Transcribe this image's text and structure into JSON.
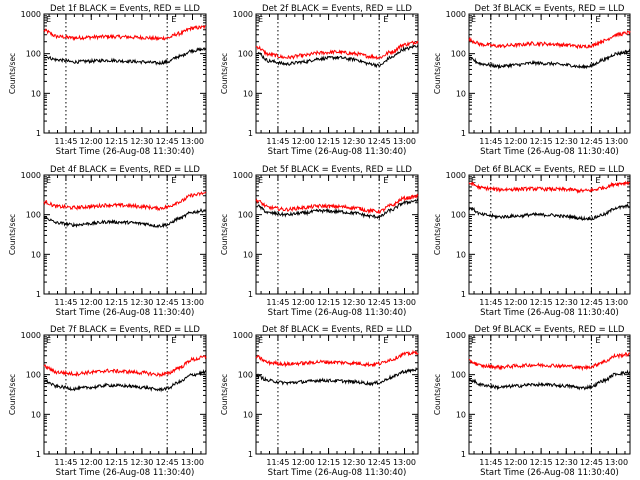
{
  "chart_data": [
    {
      "type": "line",
      "title": "Det 1f BLACK = Events, RED = LLD",
      "xlabel": "Start Time (26-Aug-08 11:30:40)",
      "ylabel": "Counts/sec",
      "y_scale": "log",
      "ylim": [
        1,
        1000
      ],
      "xlim": [
        "11:32",
        "13:08"
      ],
      "xticks": [
        "11:45",
        "12:00",
        "12:15",
        "12:30",
        "12:45",
        "13:00"
      ],
      "yticks": [
        "1",
        "10",
        "100",
        "1000"
      ],
      "event_marks": [
        "11:45",
        "12:45"
      ],
      "event_labels": [
        "E",
        "E"
      ],
      "x": [
        "11:32",
        "11:40",
        "11:50",
        "12:00",
        "12:10",
        "12:20",
        "12:30",
        "12:40",
        "12:45",
        "12:52",
        "13:00",
        "13:08"
      ],
      "series": [
        {
          "color": "#ff0000",
          "values": [
            380,
            270,
            250,
            260,
            270,
            265,
            255,
            240,
            250,
            320,
            440,
            470
          ]
        },
        {
          "color": "#000000",
          "values": [
            85,
            70,
            62,
            65,
            68,
            65,
            62,
            58,
            62,
            85,
            120,
            130
          ]
        }
      ]
    },
    {
      "type": "line",
      "title": "Det 2f BLACK = Events, RED = LLD",
      "xlabel": "Start Time (26-Aug-08 11:30:40)",
      "ylabel": "Counts/sec",
      "y_scale": "log",
      "ylim": [
        1,
        1000
      ],
      "xlim": [
        "11:32",
        "13:08"
      ],
      "xticks": [
        "11:45",
        "12:00",
        "12:15",
        "12:30",
        "12:45",
        "13:00"
      ],
      "yticks": [
        "1",
        "10",
        "100",
        "1000"
      ],
      "event_marks": [
        "11:45",
        "12:45"
      ],
      "event_labels": [
        "E",
        "E"
      ],
      "x": [
        "11:32",
        "11:40",
        "11:50",
        "12:00",
        "12:10",
        "12:20",
        "12:30",
        "12:40",
        "12:45",
        "12:52",
        "13:00",
        "13:08"
      ],
      "series": [
        {
          "color": "#ff0000",
          "values": [
            150,
            95,
            80,
            90,
            105,
            110,
            100,
            85,
            80,
            110,
            170,
            200
          ]
        },
        {
          "color": "#000000",
          "values": [
            110,
            65,
            55,
            62,
            75,
            80,
            72,
            55,
            50,
            80,
            130,
            160
          ]
        }
      ]
    },
    {
      "type": "line",
      "title": "Det 3f BLACK = Events, RED = LLD",
      "xlabel": "Start Time (26-Aug-08 11:30:40)",
      "ylabel": "Counts/sec",
      "y_scale": "log",
      "ylim": [
        1,
        1000
      ],
      "xlim": [
        "11:32",
        "13:08"
      ],
      "xticks": [
        "11:45",
        "12:00",
        "12:15",
        "12:30",
        "12:45",
        "13:00"
      ],
      "yticks": [
        "1",
        "10",
        "100",
        "1000"
      ],
      "event_marks": [
        "11:45",
        "12:45"
      ],
      "event_labels": [
        "E",
        "E"
      ],
      "x": [
        "11:32",
        "11:40",
        "11:50",
        "12:00",
        "12:10",
        "12:20",
        "12:30",
        "12:40",
        "12:45",
        "12:52",
        "13:00",
        "13:08"
      ],
      "series": [
        {
          "color": "#ff0000",
          "values": [
            220,
            170,
            155,
            165,
            180,
            175,
            165,
            150,
            160,
            210,
            300,
            340
          ]
        },
        {
          "color": "#000000",
          "values": [
            75,
            55,
            48,
            52,
            58,
            56,
            52,
            46,
            50,
            70,
            100,
            115
          ]
        }
      ]
    },
    {
      "type": "line",
      "title": "Det 4f BLACK = Events, RED = LLD",
      "xlabel": "Start Time (26-Aug-08 11:30:40)",
      "ylabel": "Counts/sec",
      "y_scale": "log",
      "ylim": [
        1,
        1000
      ],
      "xlim": [
        "11:32",
        "13:08"
      ],
      "xticks": [
        "11:45",
        "12:00",
        "12:15",
        "12:30",
        "12:45",
        "13:00"
      ],
      "yticks": [
        "1",
        "10",
        "100",
        "1000"
      ],
      "event_marks": [
        "11:45",
        "12:45"
      ],
      "event_labels": [
        "E",
        "E"
      ],
      "x": [
        "11:32",
        "11:40",
        "11:50",
        "12:00",
        "12:10",
        "12:20",
        "12:30",
        "12:40",
        "12:45",
        "12:52",
        "13:00",
        "13:08"
      ],
      "series": [
        {
          "color": "#ff0000",
          "values": [
            210,
            160,
            150,
            160,
            175,
            170,
            160,
            145,
            155,
            210,
            310,
            350
          ]
        },
        {
          "color": "#000000",
          "values": [
            85,
            62,
            55,
            60,
            66,
            64,
            60,
            52,
            56,
            80,
            115,
            130
          ]
        }
      ]
    },
    {
      "type": "line",
      "title": "Det 5f BLACK = Events, RED = LLD",
      "xlabel": "Start Time (26-Aug-08 11:30:40)",
      "ylabel": "Counts/sec",
      "y_scale": "log",
      "ylim": [
        1,
        1000
      ],
      "xlim": [
        "11:32",
        "13:08"
      ],
      "xticks": [
        "11:45",
        "12:00",
        "12:15",
        "12:30",
        "12:45",
        "13:00"
      ],
      "yticks": [
        "1",
        "10",
        "100",
        "1000"
      ],
      "event_marks": [
        "11:45",
        "12:45"
      ],
      "event_labels": [
        "E",
        "E"
      ],
      "x": [
        "11:32",
        "11:40",
        "11:50",
        "12:00",
        "12:10",
        "12:20",
        "12:30",
        "12:40",
        "12:45",
        "12:52",
        "13:00",
        "13:08"
      ],
      "series": [
        {
          "color": "#ff0000",
          "values": [
            230,
            150,
            135,
            150,
            165,
            160,
            150,
            125,
            120,
            170,
            260,
            290
          ]
        },
        {
          "color": "#000000",
          "values": [
            170,
            110,
            100,
            110,
            125,
            120,
            110,
            92,
            88,
            130,
            200,
            230
          ]
        }
      ]
    },
    {
      "type": "line",
      "title": "Det 6f BLACK = Events, RED = LLD",
      "xlabel": "Start Time (26-Aug-08 11:30:40)",
      "ylabel": "Counts/sec",
      "y_scale": "log",
      "ylim": [
        1,
        1000
      ],
      "xlim": [
        "11:32",
        "13:08"
      ],
      "xticks": [
        "11:45",
        "12:00",
        "12:15",
        "12:30",
        "12:45",
        "13:00"
      ],
      "yticks": [
        "1",
        "10",
        "100",
        "1000"
      ],
      "event_marks": [
        "11:45",
        "12:45"
      ],
      "event_labels": [
        "E",
        "E"
      ],
      "x": [
        "11:32",
        "11:40",
        "11:50",
        "12:00",
        "12:10",
        "12:20",
        "12:30",
        "12:40",
        "12:45",
        "12:52",
        "13:00",
        "13:08"
      ],
      "series": [
        {
          "color": "#ff0000",
          "values": [
            620,
            470,
            430,
            440,
            450,
            440,
            430,
            400,
            410,
            480,
            600,
            650
          ]
        },
        {
          "color": "#000000",
          "values": [
            150,
            100,
            88,
            92,
            100,
            98,
            90,
            80,
            80,
            100,
            150,
            165
          ]
        }
      ]
    },
    {
      "type": "line",
      "title": "Det 7f BLACK = Events, RED = LLD",
      "xlabel": "Start Time (26-Aug-08 11:30:40)",
      "ylabel": "Counts/sec",
      "y_scale": "log",
      "ylim": [
        1,
        1000
      ],
      "xlim": [
        "11:32",
        "13:08"
      ],
      "xticks": [
        "11:45",
        "12:00",
        "12:15",
        "12:30",
        "12:45",
        "13:00"
      ],
      "yticks": [
        "1",
        "10",
        "100",
        "1000"
      ],
      "event_marks": [
        "11:45",
        "12:45"
      ],
      "event_labels": [
        "E",
        "E"
      ],
      "x": [
        "11:32",
        "11:40",
        "11:50",
        "12:00",
        "12:10",
        "12:20",
        "12:30",
        "12:40",
        "12:45",
        "12:52",
        "13:00",
        "13:08"
      ],
      "series": [
        {
          "color": "#ff0000",
          "values": [
            160,
            115,
            105,
            115,
            125,
            120,
            112,
            100,
            105,
            150,
            240,
            280
          ]
        },
        {
          "color": "#000000",
          "values": [
            70,
            50,
            44,
            48,
            54,
            52,
            48,
            42,
            45,
            65,
            100,
            115
          ]
        }
      ]
    },
    {
      "type": "line",
      "title": "Det 8f BLACK = Events, RED = LLD",
      "xlabel": "Start Time (26-Aug-08 11:30:40)",
      "ylabel": "Counts/sec",
      "y_scale": "log",
      "ylim": [
        1,
        1000
      ],
      "xlim": [
        "11:32",
        "13:08"
      ],
      "xticks": [
        "11:45",
        "12:00",
        "12:15",
        "12:30",
        "12:45",
        "13:00"
      ],
      "yticks": [
        "1",
        "10",
        "100",
        "1000"
      ],
      "event_marks": [
        "11:45",
        "12:45"
      ],
      "event_labels": [
        "E",
        "E"
      ],
      "x": [
        "11:32",
        "11:40",
        "11:50",
        "12:00",
        "12:10",
        "12:20",
        "12:30",
        "12:40",
        "12:45",
        "12:52",
        "13:00",
        "13:08"
      ],
      "series": [
        {
          "color": "#ff0000",
          "values": [
            280,
            200,
            185,
            195,
            210,
            205,
            195,
            180,
            190,
            240,
            330,
            360
          ]
        },
        {
          "color": "#000000",
          "values": [
            95,
            70,
            62,
            66,
            72,
            70,
            66,
            60,
            63,
            85,
            120,
            135
          ]
        }
      ]
    },
    {
      "type": "line",
      "title": "Det 9f BLACK = Events, RED = LLD",
      "xlabel": "Start Time (26-Aug-08 11:30:40)",
      "ylabel": "Counts/sec",
      "y_scale": "log",
      "ylim": [
        1,
        1000
      ],
      "xlim": [
        "11:32",
        "13:08"
      ],
      "xticks": [
        "11:45",
        "12:00",
        "12:15",
        "12:30",
        "12:45",
        "13:00"
      ],
      "yticks": [
        "1",
        "10",
        "100",
        "1000"
      ],
      "event_marks": [
        "11:45",
        "12:45"
      ],
      "event_labels": [
        "E",
        "E"
      ],
      "x": [
        "11:32",
        "11:40",
        "11:50",
        "12:00",
        "12:10",
        "12:20",
        "12:30",
        "12:40",
        "12:45",
        "12:52",
        "13:00",
        "13:08"
      ],
      "series": [
        {
          "color": "#ff0000",
          "values": [
            220,
            165,
            155,
            165,
            175,
            172,
            165,
            150,
            160,
            210,
            300,
            330
          ]
        },
        {
          "color": "#000000",
          "values": [
            75,
            55,
            48,
            52,
            56,
            55,
            52,
            46,
            50,
            70,
            105,
            115
          ]
        }
      ]
    }
  ]
}
